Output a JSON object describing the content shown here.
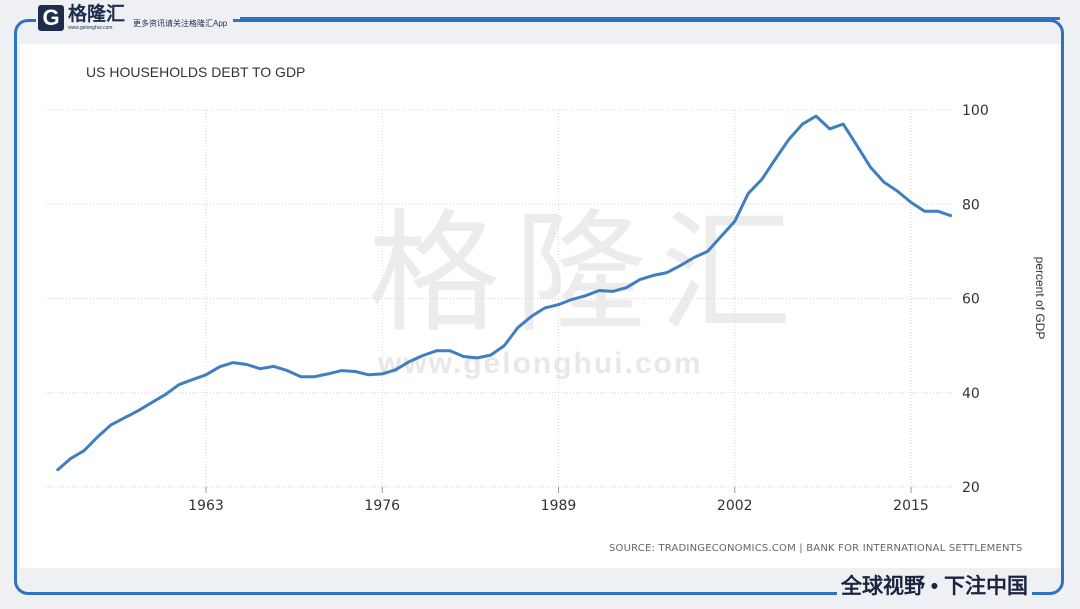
{
  "header": {
    "logo_letter": "G",
    "logo_name": "格隆汇",
    "logo_url": "www.gelonghui.com",
    "slogan": "更多资讯请关注格隆汇App"
  },
  "watermark": {
    "name": "格隆汇",
    "url": "www.gelonghui.com"
  },
  "footer": {
    "slogan": "全球视野 • 下注中国",
    "source": "SOURCE: TRADINGECONOMICS.COM | BANK FOR INTERNATIONAL SETTLEMENTS"
  },
  "colors": {
    "line": "#3f7fbf",
    "frame": "#2f72c2"
  },
  "chart_data": {
    "type": "line",
    "title": "US HOUSEHOLDS DEBT TO GDP",
    "xlabel": "",
    "ylabel": "percent of GDP",
    "xlim": [
      1952,
      2018.5
    ],
    "ylim": [
      20,
      100
    ],
    "xticks": [
      1963,
      1976,
      1989,
      2002,
      2015
    ],
    "yticks": [
      20,
      40,
      60,
      80,
      100
    ],
    "grid": true,
    "series": [
      {
        "name": "US Households Debt to GDP",
        "x": [
          1952,
          1953,
          1954,
          1955,
          1956,
          1957,
          1958,
          1959,
          1960,
          1961,
          1962,
          1963,
          1964,
          1965,
          1966,
          1967,
          1968,
          1969,
          1970,
          1971,
          1972,
          1973,
          1974,
          1975,
          1976,
          1977,
          1978,
          1979,
          1980,
          1981,
          1982,
          1983,
          1984,
          1985,
          1986,
          1987,
          1988,
          1989,
          1990,
          1991,
          1992,
          1993,
          1994,
          1995,
          1996,
          1997,
          1998,
          1999,
          2000,
          2001,
          2002,
          2003,
          2004,
          2005,
          2006,
          2007,
          2008,
          2009,
          2010,
          2011,
          2012,
          2013,
          2014,
          2015,
          2016,
          2017,
          2018
        ],
        "values": [
          23.5,
          26,
          27.7,
          30.6,
          33.2,
          34.7,
          36.2,
          37.9,
          39.6,
          41.7,
          42.8,
          43.8,
          45.5,
          46.4,
          46,
          45.1,
          45.6,
          44.7,
          43.4,
          43.4,
          44,
          44.7,
          44.5,
          43.8,
          44,
          44.9,
          46.6,
          47.9,
          48.9,
          48.9,
          47.7,
          47.4,
          48,
          50,
          53.8,
          56.2,
          58,
          58.7,
          59.8,
          60.6,
          61.7,
          61.5,
          62.3,
          64,
          64.9,
          65.5,
          67,
          68.7,
          70,
          73.2,
          76.4,
          82.3,
          85.3,
          89.6,
          93.8,
          97,
          98.7,
          96,
          97,
          92.5,
          87.9,
          84.7,
          82.8,
          80.4,
          78.5,
          78.5,
          77.5
        ]
      }
    ]
  }
}
